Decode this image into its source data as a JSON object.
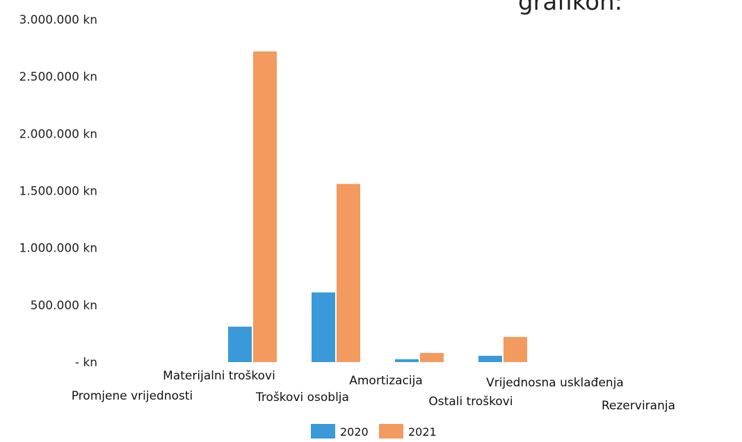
{
  "chart_data": {
    "type": "bar",
    "title_fragment": "grafikon:",
    "categories": [
      "Promjene vrijednosti",
      "Materijalni troškovi",
      "Troškovi osoblja",
      "Amortizacija",
      "Ostali troškovi",
      "Vrijednosna usklađenja",
      "Rezerviranja",
      ""
    ],
    "series": [
      {
        "name": "2020",
        "values": [
          0,
          310000,
          610000,
          25000,
          55000,
          0,
          0,
          0
        ]
      },
      {
        "name": "2021",
        "values": [
          0,
          2720000,
          1560000,
          80000,
          220000,
          0,
          0,
          15000
        ]
      }
    ],
    "ylim": [
      0,
      3000000
    ],
    "yticks": [
      {
        "value": 0,
        "label": "- kn"
      },
      {
        "value": 500000,
        "label": "500.000 kn"
      },
      {
        "value": 1000000,
        "label": "1.000.000 kn"
      },
      {
        "value": 1500000,
        "label": "1.500.000 kn"
      },
      {
        "value": 2000000,
        "label": "2.000.000 kn"
      },
      {
        "value": 2500000,
        "label": "2.500.000 kn"
      },
      {
        "value": 3000000,
        "label": "3.000.000 kn"
      }
    ],
    "grid": false,
    "legend_position": "bottom",
    "colors": {
      "2020": "#3a9ad9",
      "2021": "#f39a5e"
    }
  }
}
